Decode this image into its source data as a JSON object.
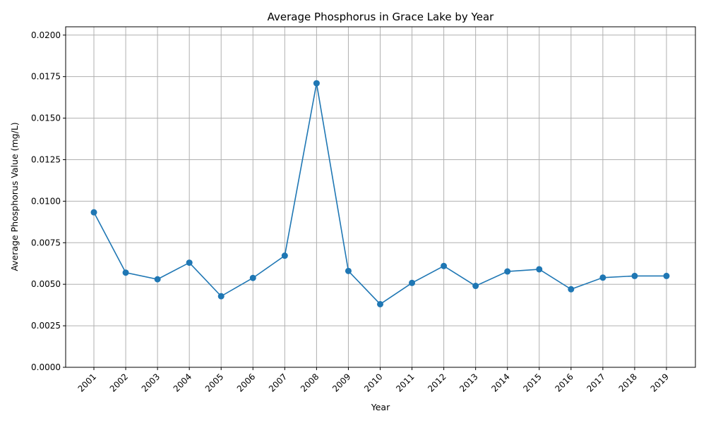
{
  "chart_data": {
    "type": "line",
    "title": "Average Phosphorus in Grace Lake by Year",
    "xlabel": "Year",
    "ylabel": "Average Phosphorus Value (mg/L)",
    "categories": [
      "2001",
      "2002",
      "2003",
      "2004",
      "2005",
      "2006",
      "2007",
      "2008",
      "2009",
      "2010",
      "2011",
      "2012",
      "2013",
      "2014",
      "2015",
      "2016",
      "2017",
      "2018",
      "2019"
    ],
    "series": [
      {
        "values": [
          0.00933,
          0.0057,
          0.0053,
          0.0063,
          0.00428,
          0.00538,
          0.00672,
          0.0171,
          0.0058,
          0.0038,
          0.00508,
          0.0061,
          0.0049,
          0.00577,
          0.0059,
          0.0047,
          0.0054,
          0.0055,
          0.0055
        ],
        "color": "#1f77b4",
        "marker": "circle"
      }
    ],
    "ylim": [
      0,
      0.0205
    ],
    "yticks": [
      "0.0000",
      "0.0025",
      "0.0050",
      "0.0075",
      "0.0100",
      "0.0125",
      "0.0150",
      "0.0175",
      "0.0200"
    ],
    "grid": true
  }
}
